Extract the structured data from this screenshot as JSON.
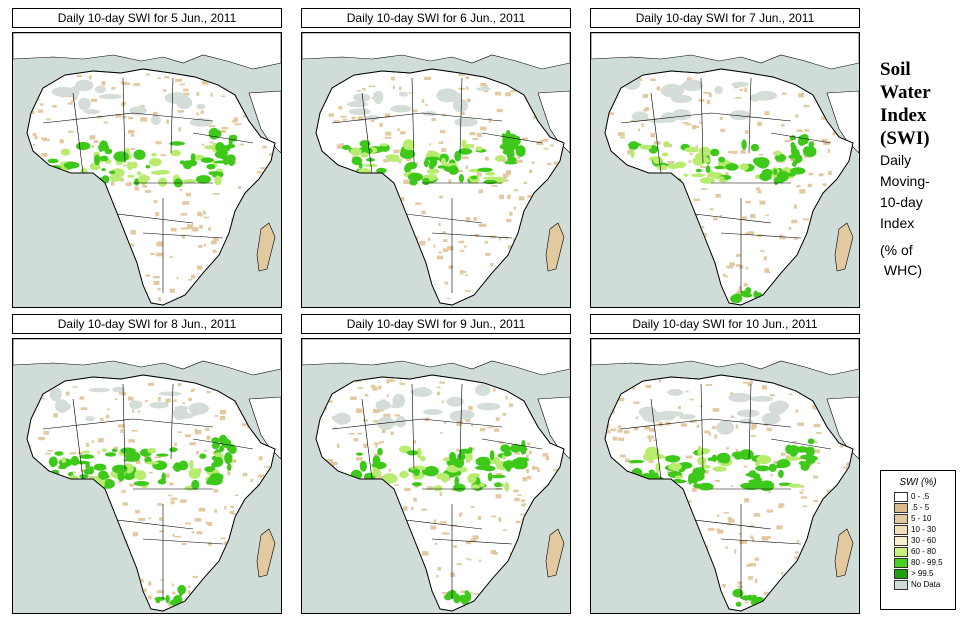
{
  "panels": [
    {
      "title": "Daily 10-day SWI for  5 Jun., 2011"
    },
    {
      "title": "Daily 10-day SWI for  6 Jun., 2011"
    },
    {
      "title": "Daily 10-day SWI for  7 Jun., 2011"
    },
    {
      "title": "Daily 10-day SWI for  8 Jun., 2011"
    },
    {
      "title": "Daily 10-day SWI for  9 Jun., 2011"
    },
    {
      "title": "Daily 10-day SWI for 10 Jun., 2011"
    }
  ],
  "side": {
    "title_lines": [
      "Soil",
      "Water",
      "Index",
      "(SWI)"
    ],
    "desc_lines": [
      "Daily",
      "Moving-",
      "10-day",
      "Index"
    ],
    "unit_lines": [
      "(% of",
      " WHC)"
    ]
  },
  "legend": {
    "title": "SWI (%)",
    "items": [
      {
        "label": "0 - .5",
        "color": "#ffffff"
      },
      {
        "label": ".5 - 5",
        "color": "#d9b98a"
      },
      {
        "label": "5 - 10",
        "color": "#e5c9a0"
      },
      {
        "label": "10 - 30",
        "color": "#f0dfbb"
      },
      {
        "label": "30 - 60",
        "color": "#faf2cc"
      },
      {
        "label": "60 - 80",
        "color": "#c8f07a"
      },
      {
        "label": "80 - 99.5",
        "color": "#46d21e"
      },
      {
        "label": "> 99.5",
        "color": "#1ea00a"
      },
      {
        "label": "No Data",
        "color": "#cfdcd8"
      }
    ]
  },
  "map_colors": {
    "ocean": "#cfdcd8",
    "land_dry": "#ffffff",
    "tan": "#e3c9a0",
    "green": "#3ec81a",
    "light_green": "#b8ec6e",
    "no_data": "#d5ddd8"
  }
}
